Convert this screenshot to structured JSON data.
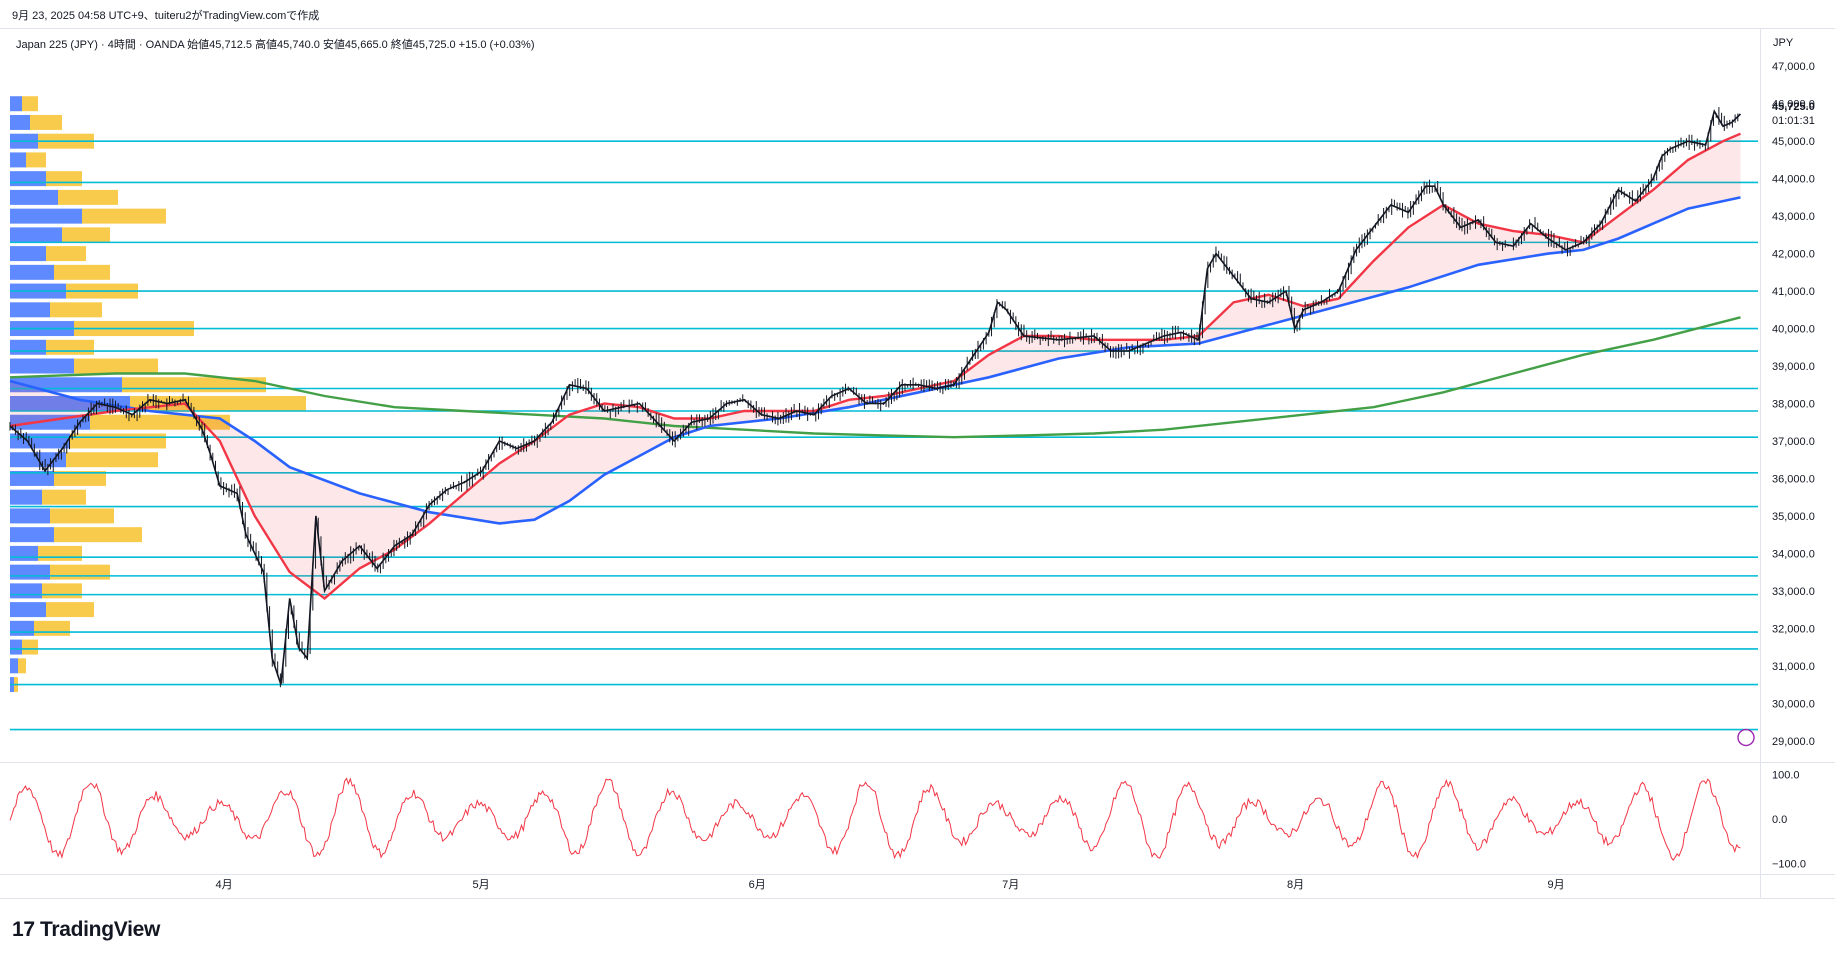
{
  "caption": "9月 23, 2025 04:58 UTC+9、tuiteru2がTradingView.comで作成",
  "legend": "Japan 225 (JPY) · 4時間 · OANDA  始値45,712.5  高値45,740.0  安値45,665.0  終値45,725.0  +15.0 (+0.03%)",
  "currency": "JPY",
  "brand": "TradingView",
  "brand_logo": "17",
  "last_price": "45,725.0",
  "countdown": "01:01:31",
  "colors": {
    "candle": "#131722",
    "ema_short": "#f23645",
    "ema_mid": "#2962ff",
    "sma_long": "#43a047",
    "hline": "#00bcd4",
    "vp_up": "#2962ff",
    "vp_down": "#f7b500",
    "osc": "#f23645"
  },
  "chart_data": {
    "type": "line",
    "title": "Japan 225 (JPY) · 4時間 · OANDA",
    "price_axis": {
      "ticks": [
        "29,000.0",
        "30,000.0",
        "31,000.0",
        "32,000.0",
        "33,000.0",
        "34,000.0",
        "35,000.0",
        "36,000.0",
        "37,000.0",
        "38,000.0",
        "39,000.0",
        "40,000.0",
        "41,000.0",
        "42,000.0",
        "43,000.0",
        "44,000.0",
        "45,000.0",
        "46,000.0",
        "47,000.0"
      ],
      "range": [
        28700,
        47300
      ]
    },
    "osc_axis": {
      "ticks": [
        "100.0",
        "0.0",
        "−100.0"
      ],
      "range": [
        -110,
        110
      ]
    },
    "x_axis": {
      "labels": [
        "4月",
        "5月",
        "6月",
        "7月",
        "8月",
        "9月"
      ],
      "positions": [
        0.121,
        0.268,
        0.426,
        0.571,
        0.734,
        0.883
      ]
    },
    "price_path": [
      [
        0,
        37400
      ],
      [
        0.01,
        37000
      ],
      [
        0.02,
        36200
      ],
      [
        0.03,
        36800
      ],
      [
        0.04,
        37500
      ],
      [
        0.05,
        38000
      ],
      [
        0.06,
        37900
      ],
      [
        0.07,
        37700
      ],
      [
        0.08,
        38100
      ],
      [
        0.09,
        38000
      ],
      [
        0.1,
        38100
      ],
      [
        0.11,
        37300
      ],
      [
        0.115,
        36600
      ],
      [
        0.12,
        35800
      ],
      [
        0.13,
        35600
      ],
      [
        0.135,
        34500
      ],
      [
        0.145,
        33500
      ],
      [
        0.15,
        31200
      ],
      [
        0.155,
        30500
      ],
      [
        0.16,
        32800
      ],
      [
        0.165,
        31500
      ],
      [
        0.17,
        31200
      ],
      [
        0.175,
        35000
      ],
      [
        0.18,
        33000
      ],
      [
        0.19,
        33800
      ],
      [
        0.2,
        34200
      ],
      [
        0.21,
        33600
      ],
      [
        0.22,
        34200
      ],
      [
        0.23,
        34500
      ],
      [
        0.24,
        35300
      ],
      [
        0.25,
        35700
      ],
      [
        0.26,
        35900
      ],
      [
        0.27,
        36200
      ],
      [
        0.28,
        37000
      ],
      [
        0.29,
        36800
      ],
      [
        0.3,
        37000
      ],
      [
        0.31,
        37500
      ],
      [
        0.32,
        38500
      ],
      [
        0.33,
        38400
      ],
      [
        0.34,
        37800
      ],
      [
        0.35,
        37900
      ],
      [
        0.36,
        38000
      ],
      [
        0.37,
        37500
      ],
      [
        0.38,
        37000
      ],
      [
        0.39,
        37500
      ],
      [
        0.4,
        37600
      ],
      [
        0.41,
        38000
      ],
      [
        0.42,
        38100
      ],
      [
        0.43,
        37700
      ],
      [
        0.44,
        37600
      ],
      [
        0.45,
        37800
      ],
      [
        0.46,
        37700
      ],
      [
        0.47,
        38200
      ],
      [
        0.48,
        38400
      ],
      [
        0.49,
        38000
      ],
      [
        0.5,
        38000
      ],
      [
        0.51,
        38500
      ],
      [
        0.52,
        38500
      ],
      [
        0.53,
        38400
      ],
      [
        0.54,
        38500
      ],
      [
        0.55,
        39200
      ],
      [
        0.56,
        39900
      ],
      [
        0.565,
        40700
      ],
      [
        0.57,
        40500
      ],
      [
        0.58,
        39800
      ],
      [
        0.6,
        39700
      ],
      [
        0.62,
        39800
      ],
      [
        0.63,
        39400
      ],
      [
        0.64,
        39400
      ],
      [
        0.66,
        39800
      ],
      [
        0.67,
        39900
      ],
      [
        0.68,
        39700
      ],
      [
        0.685,
        41600
      ],
      [
        0.69,
        42000
      ],
      [
        0.7,
        41400
      ],
      [
        0.71,
        40800
      ],
      [
        0.72,
        40700
      ],
      [
        0.73,
        41000
      ],
      [
        0.735,
        40000
      ],
      [
        0.74,
        40500
      ],
      [
        0.75,
        40700
      ],
      [
        0.76,
        41000
      ],
      [
        0.77,
        42100
      ],
      [
        0.78,
        42700
      ],
      [
        0.79,
        43300
      ],
      [
        0.8,
        43100
      ],
      [
        0.81,
        43800
      ],
      [
        0.815,
        43800
      ],
      [
        0.82,
        43300
      ],
      [
        0.83,
        42700
      ],
      [
        0.84,
        42900
      ],
      [
        0.85,
        42300
      ],
      [
        0.86,
        42200
      ],
      [
        0.87,
        42800
      ],
      [
        0.88,
        42400
      ],
      [
        0.89,
        42100
      ],
      [
        0.9,
        42300
      ],
      [
        0.91,
        42800
      ],
      [
        0.92,
        43700
      ],
      [
        0.93,
        43400
      ],
      [
        0.94,
        44000
      ],
      [
        0.945,
        44600
      ],
      [
        0.95,
        44800
      ],
      [
        0.96,
        45000
      ],
      [
        0.97,
        44900
      ],
      [
        0.975,
        45800
      ],
      [
        0.98,
        45400
      ],
      [
        0.985,
        45500
      ],
      [
        0.99,
        45725
      ]
    ],
    "ema_short_path": [
      [
        0,
        37400
      ],
      [
        0.06,
        37800
      ],
      [
        0.1,
        38000
      ],
      [
        0.12,
        37000
      ],
      [
        0.14,
        35000
      ],
      [
        0.16,
        33500
      ],
      [
        0.18,
        32800
      ],
      [
        0.2,
        33600
      ],
      [
        0.22,
        34100
      ],
      [
        0.24,
        34800
      ],
      [
        0.26,
        35600
      ],
      [
        0.28,
        36400
      ],
      [
        0.3,
        37000
      ],
      [
        0.32,
        37700
      ],
      [
        0.34,
        38000
      ],
      [
        0.36,
        37900
      ],
      [
        0.38,
        37600
      ],
      [
        0.4,
        37600
      ],
      [
        0.42,
        37800
      ],
      [
        0.44,
        37800
      ],
      [
        0.46,
        37800
      ],
      [
        0.48,
        38100
      ],
      [
        0.5,
        38200
      ],
      [
        0.52,
        38400
      ],
      [
        0.54,
        38600
      ],
      [
        0.56,
        39300
      ],
      [
        0.58,
        39800
      ],
      [
        0.6,
        39800
      ],
      [
        0.62,
        39700
      ],
      [
        0.66,
        39700
      ],
      [
        0.68,
        39800
      ],
      [
        0.7,
        40700
      ],
      [
        0.72,
        40900
      ],
      [
        0.74,
        40600
      ],
      [
        0.76,
        40800
      ],
      [
        0.78,
        41800
      ],
      [
        0.8,
        42700
      ],
      [
        0.82,
        43300
      ],
      [
        0.84,
        42800
      ],
      [
        0.86,
        42600
      ],
      [
        0.88,
        42500
      ],
      [
        0.9,
        42300
      ],
      [
        0.92,
        43000
      ],
      [
        0.94,
        43700
      ],
      [
        0.96,
        44500
      ],
      [
        0.98,
        45000
      ],
      [
        0.99,
        45200
      ]
    ],
    "ema_mid_path": [
      [
        0,
        38600
      ],
      [
        0.04,
        38100
      ],
      [
        0.08,
        37800
      ],
      [
        0.12,
        37600
      ],
      [
        0.14,
        37000
      ],
      [
        0.16,
        36300
      ],
      [
        0.2,
        35600
      ],
      [
        0.24,
        35100
      ],
      [
        0.28,
        34800
      ],
      [
        0.3,
        34900
      ],
      [
        0.32,
        35400
      ],
      [
        0.34,
        36100
      ],
      [
        0.36,
        36600
      ],
      [
        0.38,
        37100
      ],
      [
        0.4,
        37400
      ],
      [
        0.44,
        37600
      ],
      [
        0.48,
        37900
      ],
      [
        0.52,
        38300
      ],
      [
        0.56,
        38700
      ],
      [
        0.6,
        39200
      ],
      [
        0.64,
        39500
      ],
      [
        0.68,
        39600
      ],
      [
        0.72,
        40100
      ],
      [
        0.76,
        40600
      ],
      [
        0.8,
        41100
      ],
      [
        0.84,
        41700
      ],
      [
        0.88,
        42000
      ],
      [
        0.9,
        42100
      ],
      [
        0.92,
        42400
      ],
      [
        0.94,
        42800
      ],
      [
        0.96,
        43200
      ],
      [
        0.98,
        43400
      ],
      [
        0.99,
        43500
      ]
    ],
    "sma_long_path": [
      [
        0,
        38700
      ],
      [
        0.06,
        38800
      ],
      [
        0.1,
        38800
      ],
      [
        0.14,
        38600
      ],
      [
        0.18,
        38200
      ],
      [
        0.22,
        37900
      ],
      [
        0.26,
        37800
      ],
      [
        0.3,
        37700
      ],
      [
        0.34,
        37600
      ],
      [
        0.38,
        37400
      ],
      [
        0.42,
        37300
      ],
      [
        0.46,
        37200
      ],
      [
        0.5,
        37150
      ],
      [
        0.54,
        37100
      ],
      [
        0.58,
        37150
      ],
      [
        0.62,
        37200
      ],
      [
        0.66,
        37300
      ],
      [
        0.7,
        37500
      ],
      [
        0.74,
        37700
      ],
      [
        0.78,
        37900
      ],
      [
        0.82,
        38300
      ],
      [
        0.86,
        38800
      ],
      [
        0.9,
        39300
      ],
      [
        0.94,
        39700
      ],
      [
        0.99,
        40300
      ]
    ],
    "support_levels": [
      45000,
      43900,
      42300,
      41000,
      40000,
      39400,
      38400,
      37800,
      37100,
      36150,
      35250,
      33900,
      33400,
      32900,
      31900,
      31450,
      30500,
      29300
    ],
    "volume_profile": [
      [
        46000,
        0.3,
        0.4
      ],
      [
        45500,
        0.5,
        0.8
      ],
      [
        45000,
        0.7,
        1.4
      ],
      [
        44500,
        0.4,
        0.5
      ],
      [
        44000,
        0.9,
        0.9
      ],
      [
        43500,
        1.2,
        1.5
      ],
      [
        43000,
        1.8,
        2.1
      ],
      [
        42500,
        1.3,
        1.2
      ],
      [
        42000,
        0.9,
        1.0
      ],
      [
        41500,
        1.1,
        1.4
      ],
      [
        41000,
        1.4,
        1.8
      ],
      [
        40500,
        1.0,
        1.3
      ],
      [
        40000,
        1.6,
        3.0
      ],
      [
        39500,
        0.9,
        1.2
      ],
      [
        39000,
        1.6,
        2.1
      ],
      [
        38500,
        2.8,
        3.6
      ],
      [
        38000,
        3.0,
        4.4
      ],
      [
        37500,
        2.0,
        3.5
      ],
      [
        37000,
        1.5,
        2.4
      ],
      [
        36500,
        1.4,
        2.3
      ],
      [
        36000,
        1.1,
        1.3
      ],
      [
        35500,
        0.8,
        1.1
      ],
      [
        35000,
        1.0,
        1.6
      ],
      [
        34500,
        1.1,
        2.2
      ],
      [
        34000,
        0.7,
        1.1
      ],
      [
        33500,
        1.0,
        1.5
      ],
      [
        33000,
        0.8,
        1.0
      ],
      [
        32500,
        0.9,
        1.2
      ],
      [
        32000,
        0.6,
        0.9
      ],
      [
        31500,
        0.3,
        0.4
      ],
      [
        31000,
        0.2,
        0.2
      ],
      [
        30500,
        0.1,
        0.1
      ]
    ]
  }
}
